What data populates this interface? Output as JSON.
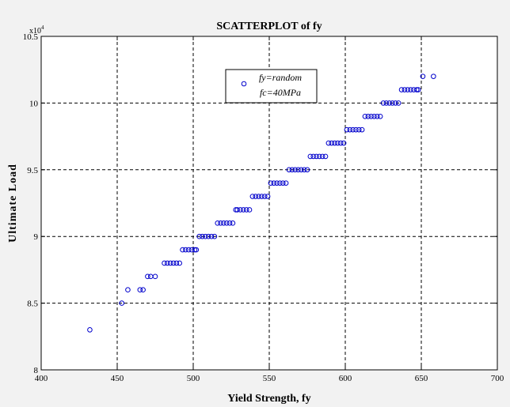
{
  "chart_data": {
    "type": "scatter",
    "title": "SCATTERPLOT of fy",
    "xlabel": "Yield Strength, fy",
    "ylabel": "Ultimate Load",
    "y_exponent_label": "x10",
    "y_exponent_power": "4",
    "xlim": [
      400,
      700
    ],
    "ylim": [
      8,
      10.5
    ],
    "xticks": [
      "400",
      "450",
      "500",
      "550",
      "600",
      "650",
      "700"
    ],
    "yticks": [
      "8",
      "8.5",
      "9",
      "9.5",
      "10",
      "10.5"
    ],
    "grid": true,
    "legend_position": "top-center",
    "legend_lines": [
      "fy=random",
      "fc=40MPa"
    ],
    "marker_color": "#0000cc",
    "series": [
      {
        "x": [
          432,
          453,
          457,
          465,
          467,
          470,
          472,
          475,
          481,
          483,
          485,
          487,
          489,
          491,
          493,
          495,
          497,
          499,
          501,
          502,
          504,
          506,
          508,
          510,
          512,
          514,
          516,
          518,
          520,
          522,
          524,
          526,
          528,
          529,
          531,
          533,
          535,
          537,
          539,
          541,
          543,
          545,
          547,
          549,
          551,
          553,
          555,
          557,
          559,
          561,
          563,
          565,
          567,
          569,
          571,
          573,
          575,
          577,
          579,
          581,
          583,
          585,
          587,
          589,
          591,
          593,
          595,
          597,
          599,
          601,
          603,
          605,
          607,
          609,
          611,
          613,
          615,
          617,
          619,
          621,
          623,
          625,
          627,
          629,
          631,
          633,
          635,
          637,
          639,
          641,
          643,
          645,
          647,
          648,
          651,
          658
        ],
        "y": [
          8.3,
          8.5,
          8.6,
          8.6,
          8.6,
          8.7,
          8.7,
          8.7,
          8.8,
          8.8,
          8.8,
          8.8,
          8.8,
          8.8,
          8.9,
          8.9,
          8.9,
          8.9,
          8.9,
          8.9,
          9.0,
          9.0,
          9.0,
          9.0,
          9.0,
          9.0,
          9.1,
          9.1,
          9.1,
          9.1,
          9.1,
          9.1,
          9.2,
          9.2,
          9.2,
          9.2,
          9.2,
          9.2,
          9.3,
          9.3,
          9.3,
          9.3,
          9.3,
          9.3,
          9.4,
          9.4,
          9.4,
          9.4,
          9.4,
          9.4,
          9.5,
          9.5,
          9.5,
          9.5,
          9.5,
          9.5,
          9.5,
          9.6,
          9.6,
          9.6,
          9.6,
          9.6,
          9.6,
          9.7,
          9.7,
          9.7,
          9.7,
          9.7,
          9.7,
          9.8,
          9.8,
          9.8,
          9.8,
          9.8,
          9.8,
          9.9,
          9.9,
          9.9,
          9.9,
          9.9,
          9.9,
          10.0,
          10.0,
          10.0,
          10.0,
          10.0,
          10.0,
          10.1,
          10.1,
          10.1,
          10.1,
          10.1,
          10.1,
          10.1,
          10.2,
          10.2
        ]
      }
    ]
  }
}
